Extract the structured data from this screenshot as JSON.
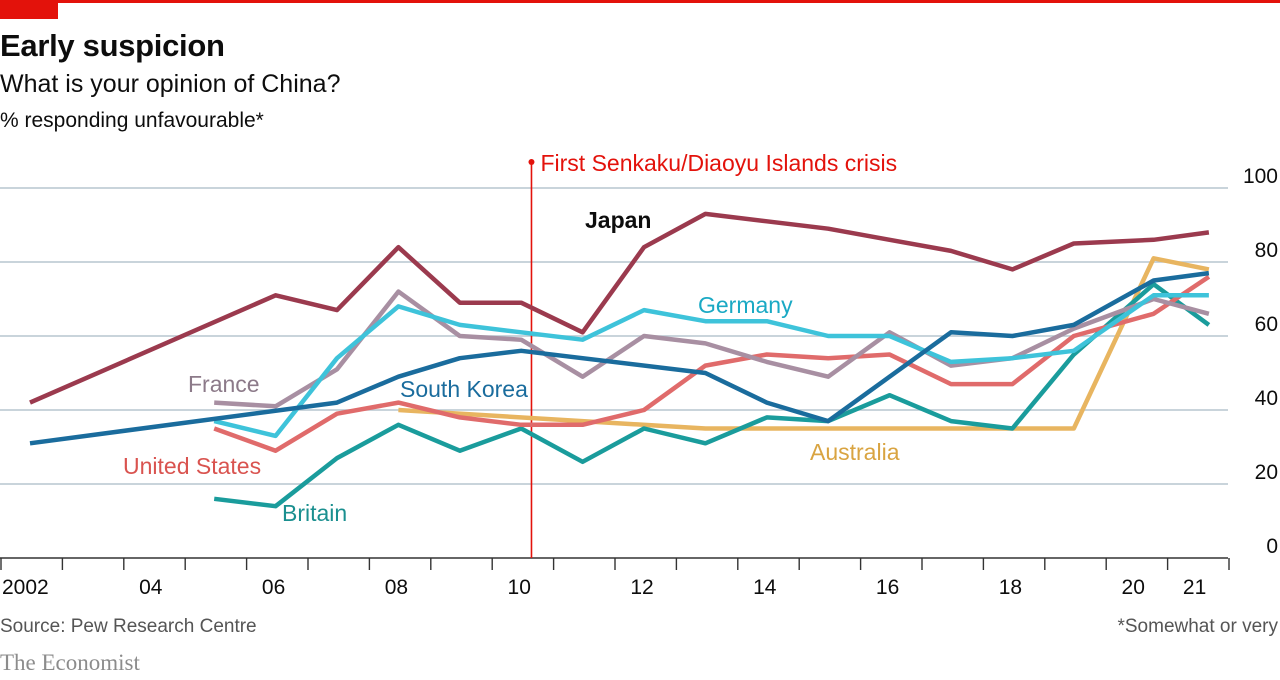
{
  "header": {
    "title": "Early suspicion",
    "subtitle": "What is your opinion of China?",
    "units": "% responding unfavourable*"
  },
  "footer": {
    "source": "Source: Pew Research Centre",
    "footnote": "*Somewhat or very",
    "brand": "The Economist"
  },
  "colors": {
    "accent": "#e3120b",
    "gridline": "#b7c6cf"
  },
  "chart_data": {
    "type": "line",
    "ylim": [
      0,
      100
    ],
    "yticks": [
      0,
      20,
      40,
      60,
      80,
      100
    ],
    "xlim": [
      2002,
      2023
    ],
    "xticks": [
      {
        "value": 2002,
        "label": "2002"
      },
      {
        "value": 2004,
        "label": "04"
      },
      {
        "value": 2006,
        "label": "06"
      },
      {
        "value": 2008,
        "label": "08"
      },
      {
        "value": 2010,
        "label": "10"
      },
      {
        "value": 2012,
        "label": "12"
      },
      {
        "value": 2014,
        "label": "14"
      },
      {
        "value": 2016,
        "label": "16"
      },
      {
        "value": 2018,
        "label": "18"
      },
      {
        "value": 2020,
        "label": "20"
      },
      {
        "value": 2021,
        "label": "21"
      }
    ],
    "grid": true,
    "annotations": [
      {
        "x": 2010.2,
        "label": "First Senkaku/Diaoyu Islands crisis",
        "color": "#e3120b"
      }
    ],
    "series": [
      {
        "name": "Japan",
        "color": "#9b3a4e",
        "label_color": "#0d0d0d",
        "x": [
          2002,
          2006,
          2007,
          2008,
          2009,
          2010,
          2011,
          2012,
          2013,
          2014,
          2015,
          2016,
          2017,
          2018,
          2019,
          2020.3,
          2021.2
        ],
        "y": [
          42,
          71,
          67,
          84,
          69,
          69,
          61,
          84,
          93,
          91,
          89,
          86,
          83,
          78,
          85,
          86,
          88
        ]
      },
      {
        "name": "Germany",
        "color": "#3ec3da",
        "label_color": "#1aa9c4",
        "x": [
          2005,
          2006,
          2007,
          2008,
          2009,
          2010,
          2011,
          2012,
          2013,
          2014,
          2015,
          2016,
          2017,
          2018,
          2019,
          2020.3,
          2021.2
        ],
        "y": [
          37,
          33,
          54,
          68,
          63,
          61,
          59,
          67,
          64,
          64,
          60,
          60,
          53,
          54,
          56,
          71,
          71
        ]
      },
      {
        "name": "France",
        "color": "#a88fa2",
        "label_color": "#8c7a89",
        "x": [
          2005,
          2006,
          2007,
          2008,
          2009,
          2010,
          2011,
          2012,
          2013,
          2014,
          2015,
          2016,
          2017,
          2018,
          2019,
          2020.3,
          2021.2
        ],
        "y": [
          42,
          41,
          51,
          72,
          60,
          59,
          49,
          60,
          58,
          53,
          49,
          61,
          52,
          54,
          62,
          70,
          66
        ]
      },
      {
        "name": "South Korea",
        "color": "#1a6c9d",
        "label_color": "#1a6c9d",
        "x": [
          2002,
          2007,
          2008,
          2009,
          2010,
          2013,
          2014,
          2015,
          2017,
          2018,
          2019,
          2020.3,
          2021.2
        ],
        "y": [
          31,
          42,
          49,
          54,
          56,
          50,
          42,
          37,
          61,
          60,
          63,
          75,
          77
        ]
      },
      {
        "name": "United States",
        "color": "#e06b6b",
        "label_color": "#d9534f",
        "x": [
          2005,
          2006,
          2007,
          2008,
          2009,
          2010,
          2011,
          2012,
          2013,
          2014,
          2015,
          2016,
          2017,
          2018,
          2019,
          2020.3,
          2021.2
        ],
        "y": [
          35,
          29,
          39,
          42,
          38,
          36,
          36,
          40,
          52,
          55,
          54,
          55,
          47,
          47,
          60,
          66,
          76
        ]
      },
      {
        "name": "Australia",
        "color": "#e8b560",
        "label_color": "#d9a441",
        "x": [
          2008,
          2013,
          2019,
          2020.3,
          2021.2
        ],
        "y": [
          40,
          35,
          35,
          81,
          78
        ]
      },
      {
        "name": "Britain",
        "color": "#1a9c9c",
        "label_color": "#1a8f8f",
        "x": [
          2005,
          2006,
          2007,
          2008,
          2009,
          2010,
          2011,
          2012,
          2013,
          2014,
          2015,
          2016,
          2017,
          2018,
          2019,
          2020.3,
          2021.2
        ],
        "y": [
          16,
          14,
          27,
          36,
          29,
          35,
          26,
          35,
          31,
          38,
          37,
          44,
          37,
          35,
          55,
          74,
          63
        ]
      }
    ]
  }
}
